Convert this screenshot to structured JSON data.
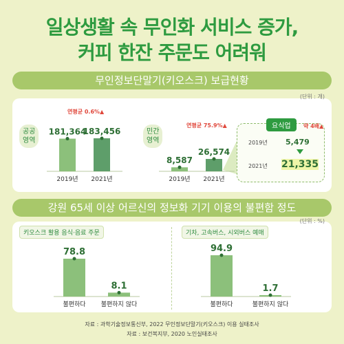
{
  "header": {
    "line1": "일상생활 속 무인화 서비스 증가,",
    "line2": "커피 한잔 주문도 어려워"
  },
  "section1": {
    "title": "무인정보단말기(키오스크) 보급현황",
    "unit": "(단위 : 개)",
    "public": {
      "label1": "공공",
      "label2": "영역",
      "growth_label": "연평균 0.6%▲"
    },
    "private": {
      "label1": "민간",
      "label2": "영역",
      "growth_label": "연평균 75.9%▲"
    },
    "restaurant": {
      "title": "요식업",
      "y2019": "2019년",
      "v2019": "5,479",
      "y2021": "2021년",
      "v2021": "21,335",
      "note": "약 4배▲"
    }
  },
  "section2": {
    "title": "강원 65세 이상 어르신의 정보화 기기 이용의 불편함 정도",
    "unit": "(단위 : %)",
    "left_tag": "키오스크 활용 음식·음료 주문",
    "right_tag": "기차, 고속버스, 시외버스 예매"
  },
  "chart_data": [
    {
      "type": "bar",
      "title": "공공 영역",
      "categories": [
        "2019년",
        "2021년"
      ],
      "values": [
        181364,
        183456
      ],
      "value_labels": [
        "181,364",
        "183,456"
      ]
    },
    {
      "type": "bar",
      "title": "민간 영역",
      "categories": [
        "2019년",
        "2021년"
      ],
      "values": [
        8587,
        26574
      ],
      "value_labels": [
        "8,587",
        "26,574"
      ]
    },
    {
      "type": "bar",
      "title": "키오스크 활용 음식·음료 주문",
      "categories": [
        "불편하다",
        "불편하지 않다"
      ],
      "values": [
        78.8,
        8.1
      ],
      "value_labels": [
        "78.8",
        "8.1"
      ]
    },
    {
      "type": "bar",
      "title": "기차, 고속버스, 시외버스 예매",
      "categories": [
        "불편하다",
        "불편하지 않다"
      ],
      "values": [
        94.9,
        1.7
      ],
      "value_labels": [
        "94.9",
        "1.7"
      ]
    }
  ],
  "sources": {
    "line1": "자료 : 과학기술정보통신부, 2022 무인정보단말기(키오스크) 이용 실태조사",
    "line2": "자료 : 보건복지부, 2020 노인실태조사"
  }
}
